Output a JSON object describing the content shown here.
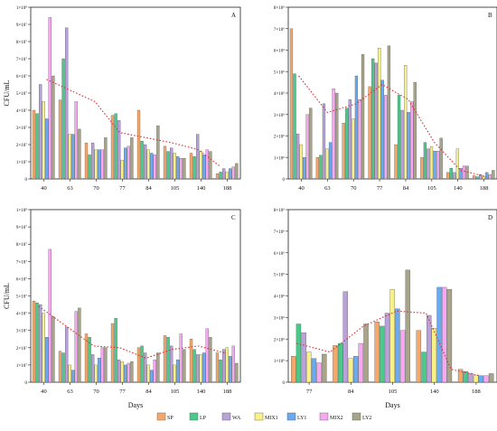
{
  "figure": {
    "legend": [
      {
        "name": "SP",
        "color": "#f5a86b"
      },
      {
        "name": "LP",
        "color": "#4ec88a"
      },
      {
        "name": "WA",
        "color": "#b9a2d8"
      },
      {
        "name": "MIX1",
        "color": "#f8f089"
      },
      {
        "name": "LY1",
        "color": "#6aaaf0"
      },
      {
        "name": "MIX2",
        "color": "#f6a8f0"
      },
      {
        "name": "LY2",
        "color": "#a7a489"
      }
    ]
  },
  "chart_data": [
    {
      "type": "bar",
      "panel_label": "A",
      "xlabel": "",
      "ylabel": "CFU/mL",
      "ylim": [
        0,
        100000000
      ],
      "y_ticks": [
        {
          "value": 0,
          "label": "0"
        },
        {
          "value": 10000000,
          "label": "1×10⁷"
        },
        {
          "value": 20000000,
          "label": "2×10⁷"
        },
        {
          "value": 30000000,
          "label": "3×10⁷"
        },
        {
          "value": 40000000,
          "label": "4×10⁷"
        },
        {
          "value": 50000000,
          "label": "5×10⁷"
        },
        {
          "value": 60000000,
          "label": "6×10⁷"
        },
        {
          "value": 70000000,
          "label": "7×10⁷"
        },
        {
          "value": 80000000,
          "label": "8×10⁷"
        },
        {
          "value": 90000000,
          "label": "9×10⁷"
        },
        {
          "value": 100000000,
          "label": "1×10⁸"
        }
      ],
      "categories": [
        "40",
        "63",
        "70",
        "77",
        "84",
        "105",
        "140",
        "188"
      ],
      "series": [
        {
          "name": "SP",
          "values": [
            40000000,
            46000000,
            21000000,
            37000000,
            40000000,
            19000000,
            15000000,
            3000000
          ]
        },
        {
          "name": "LP",
          "values": [
            38000000,
            70000000,
            14000000,
            38000000,
            22000000,
            16000000,
            13000000,
            4000000
          ]
        },
        {
          "name": "WA",
          "values": [
            55000000,
            88000000,
            21000000,
            34000000,
            20000000,
            18000000,
            26000000,
            6000000
          ]
        },
        {
          "name": "MIX1",
          "values": [
            45000000,
            26000000,
            17000000,
            11000000,
            17000000,
            15000000,
            16000000,
            4000000
          ]
        },
        {
          "name": "LY1",
          "values": [
            35000000,
            26000000,
            17000000,
            18000000,
            15000000,
            13000000,
            14000000,
            6000000
          ]
        },
        {
          "name": "MIX2",
          "values": [
            94000000,
            45000000,
            17000000,
            19000000,
            14000000,
            12000000,
            17000000,
            7000000
          ]
        },
        {
          "name": "LY2",
          "values": [
            60000000,
            29000000,
            24000000,
            24000000,
            31000000,
            12000000,
            16000000,
            9000000
          ]
        }
      ],
      "trend": [
        0.6,
        2.45,
        3.4,
        4.4,
        5.4,
        6.4,
        7.25
      ],
      "trend_values": [
        58000000,
        45000000,
        27000000,
        24000000,
        21000000,
        17000000,
        7000000
      ]
    },
    {
      "type": "bar",
      "panel_label": "B",
      "xlabel": "",
      "ylabel": "",
      "ylim": [
        0,
        8000000
      ],
      "y_ticks": [
        {
          "value": 0,
          "label": "0"
        },
        {
          "value": 1000000,
          "label": "1×10⁶"
        },
        {
          "value": 2000000,
          "label": "2×10⁶"
        },
        {
          "value": 3000000,
          "label": "3×10⁶"
        },
        {
          "value": 4000000,
          "label": "4×10⁶"
        },
        {
          "value": 5000000,
          "label": "5×10⁶"
        },
        {
          "value": 6000000,
          "label": "6×10⁶"
        },
        {
          "value": 7000000,
          "label": "7×10⁶"
        },
        {
          "value": 8000000,
          "label": "8×10⁶"
        }
      ],
      "categories": [
        "40",
        "63",
        "70",
        "77",
        "84",
        "105",
        "140",
        "188"
      ],
      "series": [
        {
          "name": "SP",
          "values": [
            7000000,
            1000000,
            2600000,
            4300000,
            1600000,
            1000000,
            300000,
            150000
          ]
        },
        {
          "name": "LP",
          "values": [
            4900000,
            1100000,
            3300000,
            5600000,
            3900000,
            1700000,
            500000,
            100000
          ]
        },
        {
          "name": "WA",
          "values": [
            2100000,
            3500000,
            3700000,
            5400000,
            3200000,
            1400000,
            300000,
            200000
          ]
        },
        {
          "name": "MIX1",
          "values": [
            1600000,
            1400000,
            2800000,
            6100000,
            5300000,
            1500000,
            1400000,
            100000
          ]
        },
        {
          "name": "LY1",
          "values": [
            1000000,
            1700000,
            4800000,
            4600000,
            3100000,
            1300000,
            500000,
            300000
          ]
        },
        {
          "name": "MIX2",
          "values": [
            3000000,
            4200000,
            3700000,
            3900000,
            3600000,
            1300000,
            600000,
            200000
          ]
        },
        {
          "name": "LY2",
          "values": [
            3300000,
            4000000,
            5800000,
            6200000,
            4500000,
            1900000,
            600000,
            400000
          ]
        }
      ],
      "trend": [
        0.4,
        1.5,
        2.6,
        3.6,
        4.6,
        5.6,
        6.6,
        7.6
      ],
      "trend_values": [
        4800000,
        3100000,
        3500000,
        4400000,
        3700000,
        1700000,
        400000,
        100000
      ]
    },
    {
      "type": "bar",
      "panel_label": "C",
      "xlabel": "Days",
      "ylabel": "CFU/mL",
      "ylim": [
        0,
        100000000
      ],
      "y_ticks": [
        {
          "value": 0,
          "label": "0"
        },
        {
          "value": 10000000,
          "label": "1×10⁷"
        },
        {
          "value": 20000000,
          "label": "2×10⁷"
        },
        {
          "value": 30000000,
          "label": "3×10⁷"
        },
        {
          "value": 40000000,
          "label": "4×10⁷"
        },
        {
          "value": 50000000,
          "label": "5×10⁷"
        },
        {
          "value": 60000000,
          "label": "6×10⁷"
        },
        {
          "value": 70000000,
          "label": "7×10⁷"
        },
        {
          "value": 80000000,
          "label": "8×10⁷"
        },
        {
          "value": 90000000,
          "label": "9×10⁷"
        },
        {
          "value": 100000000,
          "label": "1×10⁸"
        }
      ],
      "categories": [
        "40",
        "63",
        "70",
        "77",
        "84",
        "105",
        "140",
        "188"
      ],
      "series": [
        {
          "name": "SP",
          "values": [
            47000000,
            18000000,
            28000000,
            34000000,
            20000000,
            27000000,
            25000000,
            17000000
          ]
        },
        {
          "name": "LP",
          "values": [
            46000000,
            17000000,
            26000000,
            37000000,
            21000000,
            26000000,
            19000000,
            13000000
          ]
        },
        {
          "name": "WA",
          "values": [
            45000000,
            32000000,
            16000000,
            13000000,
            17000000,
            21000000,
            16000000,
            19000000
          ]
        },
        {
          "name": "MIX1",
          "values": [
            40000000,
            10000000,
            10000000,
            12000000,
            10000000,
            10000000,
            16000000,
            20000000
          ]
        },
        {
          "name": "LY1",
          "values": [
            26000000,
            7000000,
            14000000,
            10000000,
            7000000,
            13000000,
            17000000,
            15000000
          ]
        },
        {
          "name": "MIX2",
          "values": [
            77000000,
            41000000,
            20000000,
            11000000,
            13000000,
            28000000,
            31000000,
            21000000
          ]
        },
        {
          "name": "LY2",
          "values": [
            38000000,
            43000000,
            20000000,
            12000000,
            17000000,
            19000000,
            26000000,
            11000000
          ]
        }
      ],
      "trend": [
        0.3,
        1.4,
        2.4,
        3.4,
        4.4,
        5.4,
        6.4,
        7.4
      ],
      "trend_values": [
        44000000,
        32000000,
        21000000,
        20000000,
        14000000,
        19000000,
        21000000,
        17000000
      ]
    },
    {
      "type": "bar",
      "panel_label": "D",
      "xlabel": "Days",
      "ylabel": "",
      "ylim": [
        0,
        8000000
      ],
      "y_ticks": [
        {
          "value": 0,
          "label": "0"
        },
        {
          "value": 1000000,
          "label": "1×10⁶"
        },
        {
          "value": 2000000,
          "label": "2×10⁶"
        },
        {
          "value": 3000000,
          "label": "3×10⁶"
        },
        {
          "value": 4000000,
          "label": "4×10⁶"
        },
        {
          "value": 5000000,
          "label": "5×10⁶"
        },
        {
          "value": 6000000,
          "label": "6×10⁶"
        },
        {
          "value": 7000000,
          "label": "7×10⁶"
        },
        {
          "value": 8000000,
          "label": "8×10⁶"
        }
      ],
      "categories": [
        "77",
        "84",
        "105",
        "140",
        "188"
      ],
      "series": [
        {
          "name": "SP",
          "values": [
            1200000,
            1700000,
            2800000,
            2400000,
            600000
          ]
        },
        {
          "name": "LP",
          "values": [
            2700000,
            1800000,
            2600000,
            1400000,
            500000
          ]
        },
        {
          "name": "WA",
          "values": [
            2300000,
            4200000,
            3200000,
            3100000,
            400000
          ]
        },
        {
          "name": "MIX1",
          "values": [
            1400000,
            1100000,
            4300000,
            2500000,
            300000
          ]
        },
        {
          "name": "LY1",
          "values": [
            1100000,
            1200000,
            3400000,
            4400000,
            300000
          ]
        },
        {
          "name": "MIX2",
          "values": [
            900000,
            1800000,
            2400000,
            4400000,
            300000
          ]
        },
        {
          "name": "LY2",
          "values": [
            1300000,
            2700000,
            5200000,
            4300000,
            400000
          ]
        }
      ],
      "trend": [
        0.2,
        1.0,
        1.8,
        2.6,
        3.3,
        3.9,
        4.6
      ],
      "trend_values": [
        1800000,
        1400000,
        2600000,
        3300000,
        3200000,
        600000,
        300000
      ]
    }
  ]
}
